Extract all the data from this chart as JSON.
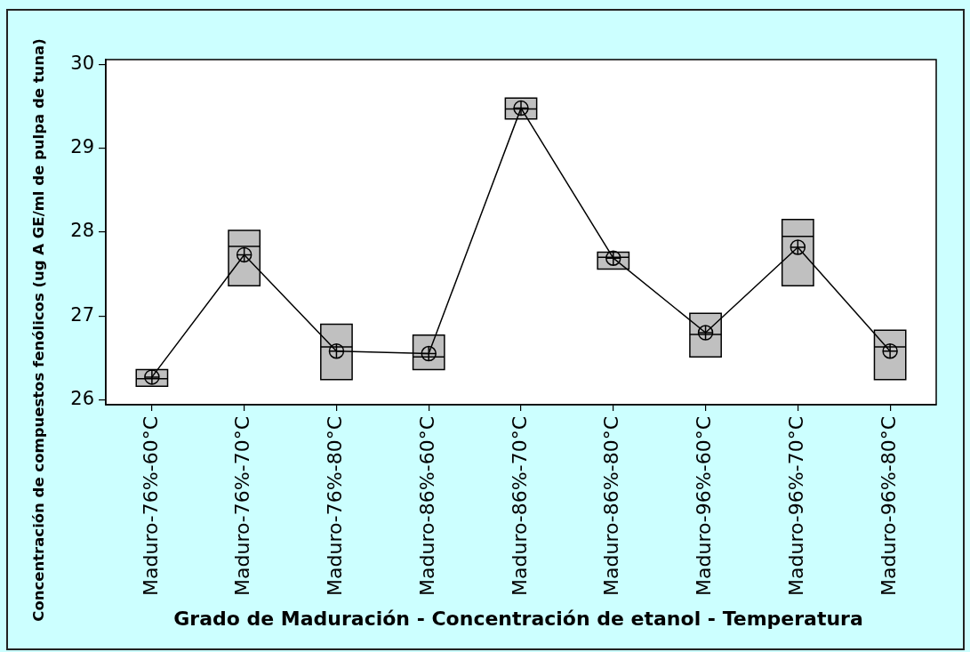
{
  "chart_data": {
    "type": "box",
    "xlabel": "Grado de Maduración - Concentración de etanol - Temperatura",
    "ylabel": "Concentración de compuestos fenólicos (ug A GE/ml de pulpa de tuna)",
    "categories": [
      "Maduro-76%-60°C",
      "Maduro-76%-70°C",
      "Maduro-76%-80°C",
      "Maduro-86%-60°C",
      "Maduro-86%-70°C",
      "Maduro-86%-80°C",
      "Maduro-96%-60°C",
      "Maduro-96%-70°C",
      "Maduro-96%-80°C"
    ],
    "ylim": [
      25.94,
      30.06
    ],
    "yticks": [
      26,
      27,
      28,
      29,
      30
    ],
    "series": [
      {
        "color": "#c0c0c0",
        "boxes": [
          {
            "low": 26.16,
            "q1": 26.16,
            "median": 26.25,
            "q3": 26.36,
            "high": 26.36
          },
          {
            "low": 27.36,
            "q1": 27.36,
            "median": 27.83,
            "q3": 28.02,
            "high": 28.02
          },
          {
            "low": 26.24,
            "q1": 26.24,
            "median": 26.63,
            "q3": 26.9,
            "high": 26.9
          },
          {
            "low": 26.36,
            "q1": 26.36,
            "median": 26.51,
            "q3": 26.77,
            "high": 26.77
          },
          {
            "low": 29.35,
            "q1": 29.35,
            "median": 29.47,
            "q3": 29.6,
            "high": 29.6
          },
          {
            "low": 27.56,
            "q1": 27.56,
            "median": 27.7,
            "q3": 27.76,
            "high": 27.76
          },
          {
            "low": 26.51,
            "q1": 26.51,
            "median": 26.78,
            "q3": 27.03,
            "high": 27.03
          },
          {
            "low": 27.36,
            "q1": 27.36,
            "median": 27.95,
            "q3": 28.15,
            "high": 28.15
          },
          {
            "low": 26.24,
            "q1": 26.24,
            "median": 26.63,
            "q3": 26.83,
            "high": 26.83
          }
        ]
      },
      {
        "type": "line",
        "color": "#000000",
        "marker": "circle",
        "values": [
          26.27,
          27.73,
          26.58,
          26.55,
          29.48,
          27.69,
          26.8,
          27.82,
          26.58
        ]
      }
    ]
  }
}
